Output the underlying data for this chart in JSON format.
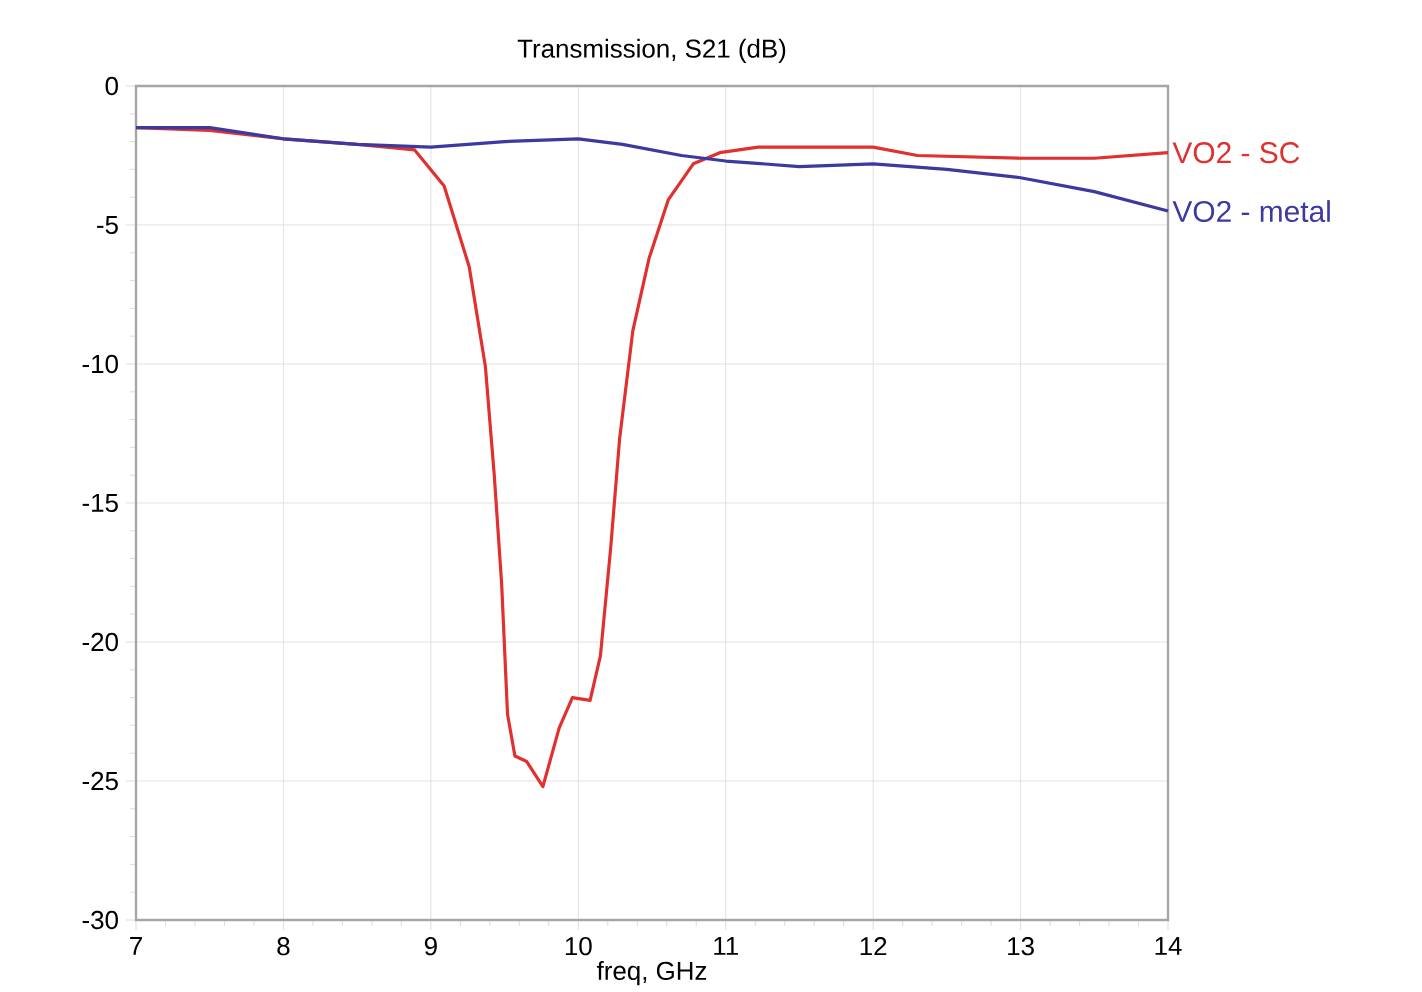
{
  "chart_data": {
    "type": "line",
    "title": "Transmission, S21 (dB)",
    "xlabel": "freq, GHz",
    "xlim": [
      7,
      14
    ],
    "xticks": [
      7,
      8,
      9,
      10,
      11,
      12,
      13,
      14
    ],
    "ylim": [
      -30,
      0
    ],
    "yticks": [
      -30,
      -25,
      -20,
      -15,
      -10,
      -5,
      0
    ],
    "grid": true,
    "legend": false,
    "line_style": "solid",
    "marker": "none",
    "series": [
      {
        "name": "VO2 - SC",
        "color": "#e03030",
        "x": [
          7,
          7.5,
          8,
          8.5,
          8.7,
          8.89,
          9.09,
          9.26,
          9.37,
          9.43,
          9.48,
          9.52,
          9.57,
          9.65,
          9.76,
          9.87,
          9.96,
          10.08,
          10.15,
          10.22,
          10.28,
          10.37,
          10.48,
          10.61,
          10.78,
          10.96,
          11.22,
          11.5,
          12,
          12.3,
          13,
          13.5,
          14
        ],
        "values": [
          -1.5,
          -1.6,
          -1.9,
          -2.1,
          -2.2,
          -2.3,
          -3.6,
          -6.5,
          -10.1,
          -14.0,
          -17.9,
          -22.6,
          -24.1,
          -24.3,
          -25.2,
          -23.1,
          -22.0,
          -22.1,
          -20.5,
          -16.6,
          -12.7,
          -8.8,
          -6.2,
          -4.1,
          -2.8,
          -2.4,
          -2.2,
          -2.2,
          -2.2,
          -2.5,
          -2.6,
          -2.6,
          -2.4
        ]
      },
      {
        "name": "VO2 - metal",
        "color": "#3a3aa0",
        "x": [
          7,
          7.5,
          8,
          8.5,
          9,
          9.5,
          10,
          10.3,
          10.7,
          11,
          11.5,
          12,
          12.5,
          13,
          13.5,
          14
        ],
        "values": [
          -1.5,
          -1.5,
          -1.9,
          -2.1,
          -2.2,
          -2.0,
          -1.9,
          -2.1,
          -2.5,
          -2.7,
          -2.9,
          -2.8,
          -3.0,
          -3.3,
          -3.8,
          -4.5
        ]
      }
    ]
  }
}
